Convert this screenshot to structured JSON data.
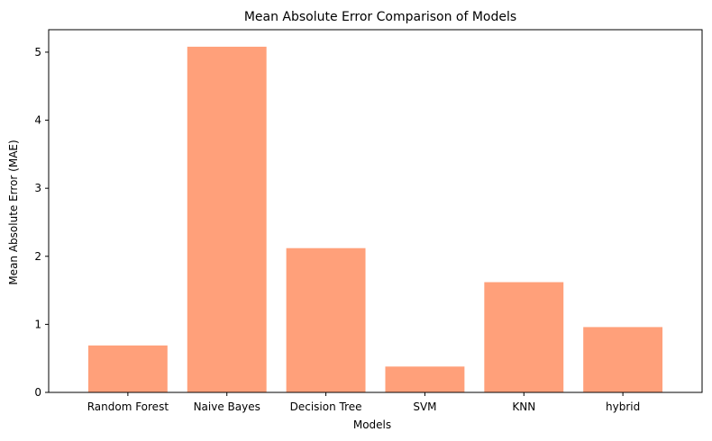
{
  "chart_data": {
    "type": "bar",
    "title": "Mean Absolute Error Comparison of Models",
    "xlabel": "Models",
    "ylabel": "Mean Absolute Error (MAE)",
    "categories": [
      "Random Forest",
      "Naive Bayes",
      "Decision Tree",
      "SVM",
      "KNN",
      "hybrid"
    ],
    "values": [
      0.69,
      5.08,
      2.12,
      0.38,
      1.62,
      0.96
    ],
    "ylim": [
      0,
      5.33
    ],
    "yticks": [
      0,
      1,
      2,
      3,
      4,
      5
    ],
    "bar_color": "#FFA07A",
    "grid": false,
    "legend": "none"
  }
}
